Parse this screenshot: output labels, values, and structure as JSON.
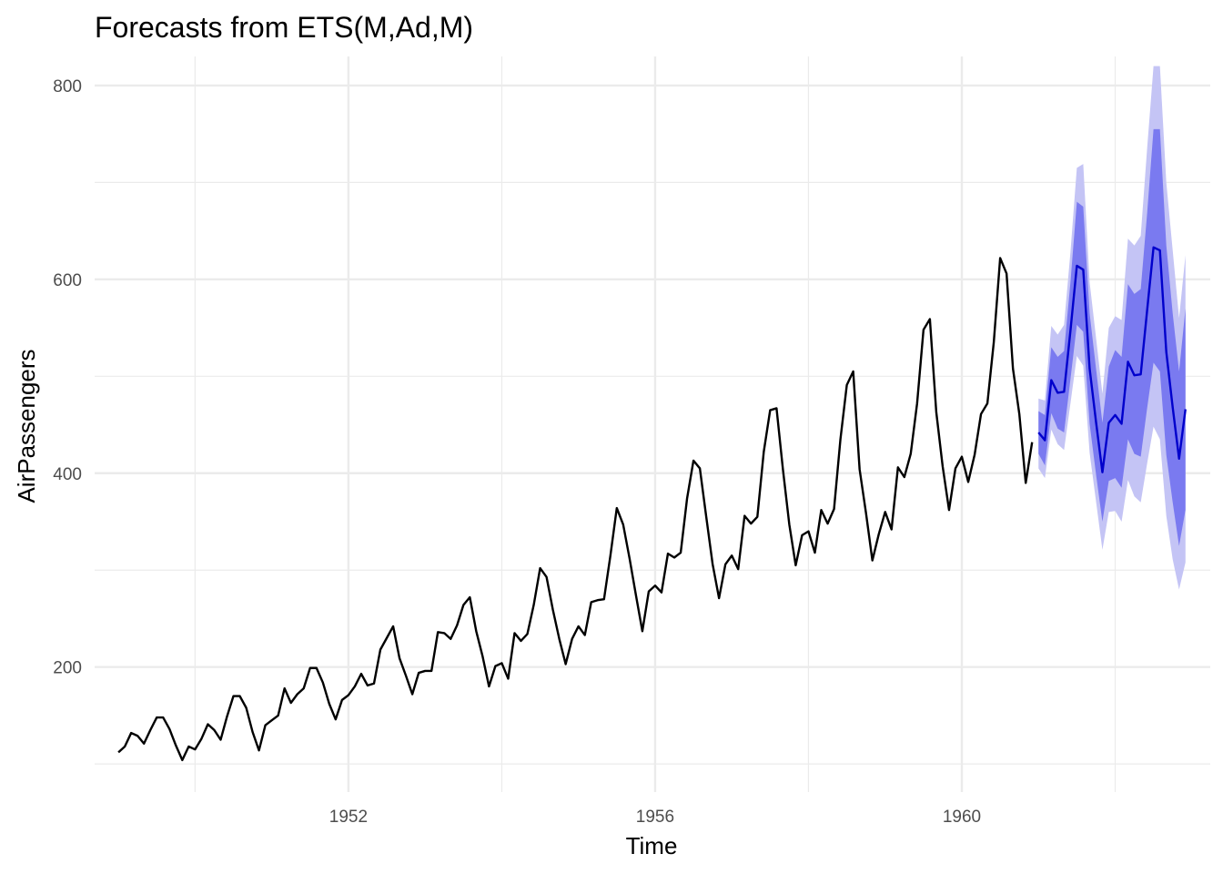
{
  "chart_data": {
    "type": "line",
    "title": "Forecasts from ETS(M,Ad,M)",
    "xlabel": "Time",
    "ylabel": "AirPassengers",
    "xlim": [
      1948.69,
      1963.24
    ],
    "ylim": [
      71,
      830
    ],
    "x_ticks": [
      1952,
      1956,
      1960
    ],
    "x_tick_labels": [
      "1952",
      "1956",
      "1960"
    ],
    "y_ticks": [
      200,
      400,
      600,
      800
    ],
    "y_tick_labels": [
      "200",
      "400",
      "600",
      "800"
    ],
    "grid": true,
    "legend": "none",
    "colors": {
      "history": "#000000",
      "forecast": "#0000cc",
      "band80": "#7a7af0",
      "band95": "#c4c4f5",
      "grid": "#ebebeb"
    },
    "history": {
      "name": "AirPassengers",
      "start": 1949,
      "frequency": 12,
      "values": [
        112,
        118,
        132,
        129,
        121,
        135,
        148,
        148,
        136,
        119,
        104,
        118,
        115,
        126,
        141,
        135,
        125,
        149,
        170,
        170,
        158,
        133,
        114,
        140,
        145,
        150,
        178,
        163,
        172,
        178,
        199,
        199,
        184,
        162,
        146,
        166,
        171,
        180,
        193,
        181,
        183,
        218,
        230,
        242,
        209,
        191,
        172,
        194,
        196,
        196,
        236,
        235,
        229,
        243,
        264,
        272,
        237,
        211,
        180,
        201,
        204,
        188,
        235,
        227,
        234,
        264,
        302,
        293,
        259,
        229,
        203,
        229,
        242,
        233,
        267,
        269,
        270,
        315,
        364,
        347,
        312,
        274,
        237,
        278,
        284,
        277,
        317,
        313,
        318,
        374,
        413,
        405,
        355,
        306,
        271,
        306,
        315,
        301,
        356,
        348,
        355,
        422,
        465,
        467,
        404,
        347,
        305,
        336,
        340,
        318,
        362,
        348,
        363,
        435,
        491,
        505,
        404,
        359,
        310,
        337,
        360,
        342,
        406,
        396,
        420,
        472,
        548,
        559,
        463,
        407,
        362,
        405,
        417,
        391,
        419,
        461,
        472,
        535,
        622,
        606,
        508,
        461,
        390,
        432
      ]
    },
    "forecast": {
      "name": "ETS(M,Ad,M)",
      "start": 1961,
      "frequency": 12,
      "mean": [
        442,
        434,
        496,
        483,
        484,
        547,
        614,
        610,
        508,
        453,
        401,
        452,
        460,
        451,
        515,
        501,
        502,
        568,
        633,
        630,
        525,
        468,
        415,
        466
      ],
      "lo80": [
        420,
        408,
        462,
        446,
        442,
        497,
        553,
        546,
        451,
        399,
        350,
        392,
        395,
        385,
        435,
        420,
        417,
        467,
        514,
        505,
        419,
        370,
        325,
        362
      ],
      "hi80": [
        464,
        460,
        530,
        520,
        526,
        597,
        680,
        675,
        565,
        508,
        452,
        510,
        527,
        520,
        595,
        585,
        590,
        668,
        755,
        755,
        635,
        565,
        505,
        570
      ],
      "lo95": [
        405,
        395,
        445,
        430,
        424,
        472,
        521,
        511,
        421,
        371,
        321,
        360,
        361,
        350,
        393,
        376,
        370,
        410,
        448,
        435,
        356,
        311,
        280,
        308
      ],
      "hi95": [
        477,
        475,
        552,
        543,
        553,
        628,
        715,
        719,
        597,
        540,
        482,
        550,
        562,
        558,
        642,
        635,
        645,
        735,
        820,
        820,
        700,
        630,
        560,
        625
      ]
    }
  }
}
